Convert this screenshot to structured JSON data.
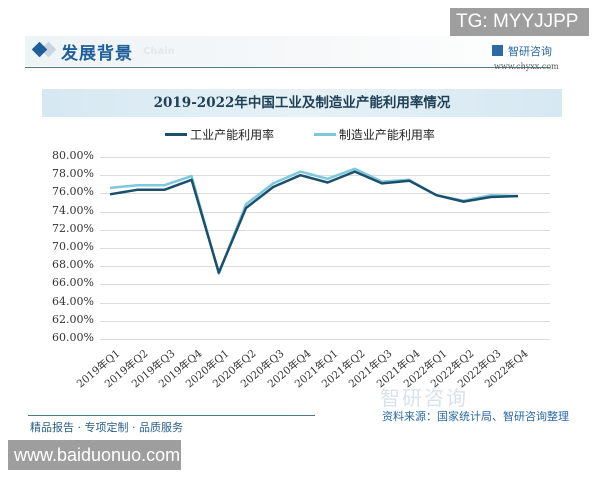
{
  "header": {
    "section_title": "发展背景",
    "section_ghost": "Chain",
    "brand_name": "智研咨询",
    "brand_url": "www.chyxx.com"
  },
  "overlays": {
    "tg_badge": "TG: MYYJJPP",
    "site_badge": "www.baiduonuo.com"
  },
  "footer": {
    "tagline": "精品报告 · 专项定制 · 品质服务",
    "source": "资料来源：国家统计局、智研咨询整理",
    "watermark": "智研咨询"
  },
  "colors": {
    "industrial": "#1b4f6b",
    "manufacturing": "#7cc8de",
    "accent": "#1e5f9a"
  },
  "chart_data": {
    "type": "line",
    "title": "2019-2022年中国工业及制造业产能利用率情况",
    "xlabel": "",
    "ylabel": "",
    "ylim": [
      60,
      80
    ],
    "yticks": [
      "80.00%",
      "78.00%",
      "76.00%",
      "74.00%",
      "72.00%",
      "70.00%",
      "68.00%",
      "66.00%",
      "64.00%",
      "62.00%",
      "60.00%"
    ],
    "grid": true,
    "legend_position": "top",
    "categories": [
      "2019年Q1",
      "2019年Q2",
      "2019年Q3",
      "2019年Q4",
      "2020年Q1",
      "2020年Q2",
      "2020年Q3",
      "2020年Q4",
      "2021年Q1",
      "2021年Q2",
      "2021年Q3",
      "2021年Q4",
      "2022年Q1",
      "2022年Q2",
      "2022年Q3",
      "2022年Q4"
    ],
    "series": [
      {
        "name": "工业产能利用率",
        "values": [
          75.9,
          76.4,
          76.4,
          77.5,
          67.3,
          74.4,
          76.7,
          78.0,
          77.2,
          78.4,
          77.1,
          77.4,
          75.8,
          75.1,
          75.6,
          75.7
        ]
      },
      {
        "name": "制造业产能利用率",
        "values": [
          76.6,
          76.9,
          76.9,
          77.9,
          67.2,
          74.8,
          77.1,
          78.4,
          77.6,
          78.7,
          77.3,
          77.5,
          75.8,
          75.2,
          75.8,
          75.7
        ]
      }
    ]
  }
}
